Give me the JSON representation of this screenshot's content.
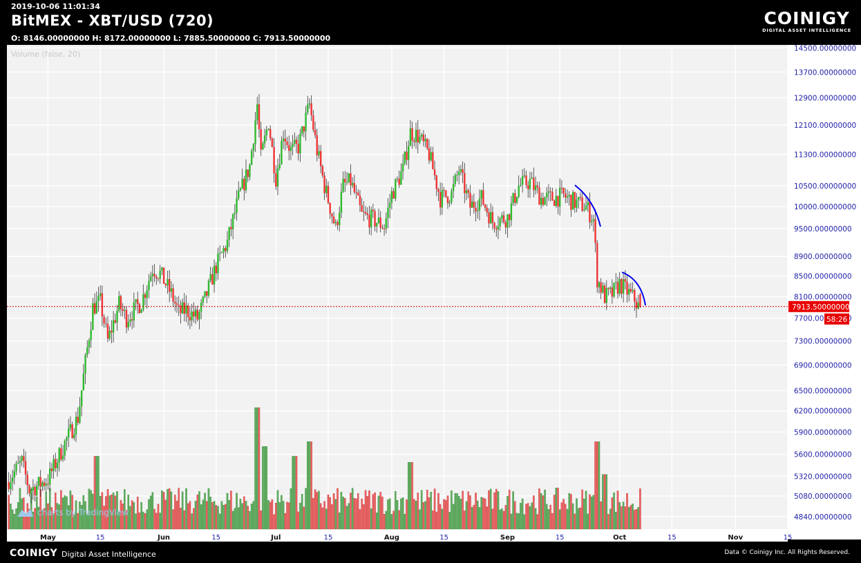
{
  "header": {
    "timestamp": "2019-10-06 11:01:34",
    "title": "BitMEX - XBT/USD (720)",
    "ohlc": "O: 8146.00000000 H: 8172.00000000 L: 7885.50000000 C: 7913.50000000"
  },
  "brand": {
    "name": "COINIGY",
    "tagline": "DIGITAL ASSET INTELLIGENCE"
  },
  "chart_data": {
    "type": "candlestick",
    "interval": "720",
    "indicator_label": "Volume (false, 20)",
    "watermark": "charts by TradingView",
    "x_labels": [
      "May",
      "15",
      "Jun",
      "15",
      "Jul",
      "15",
      "Aug",
      "15",
      "Sep",
      "15",
      "Oct",
      "15",
      "Nov",
      "15"
    ],
    "y_ticks": [
      "14500.00000000",
      "13700.00000000",
      "12900.00000000",
      "12100.00000000",
      "11300.00000000",
      "10500.00000000",
      "10000.00000000",
      "9500.00000000",
      "8900.00000000",
      "8500.00000000",
      "8100.00000000",
      "7700.00000000",
      "7300.00000000",
      "6900.00000000",
      "6500.00000000",
      "6200.00000000",
      "5900.00000000",
      "5600.00000000",
      "5320.00000000",
      "5080.00000000",
      "4840.00000000"
    ],
    "y_scale": "log",
    "y_range": [
      4700,
      14600
    ],
    "x_range": [
      "2019-04-20",
      "2019-11-15"
    ],
    "last_price": "7913.50000000",
    "countdown": "58:26",
    "colors": {
      "up": "#2eb82e",
      "down": "#ee3333",
      "price_line": "#cc0000",
      "arc": "#0000ee",
      "background": "#f2f2f2"
    },
    "anchors": [
      [
        "2019-04-20",
        5250
      ],
      [
        "2019-04-24",
        5500
      ],
      [
        "2019-04-26",
        5150
      ],
      [
        "2019-05-01",
        5280
      ],
      [
        "2019-05-06",
        5800
      ],
      [
        "2019-05-09",
        6100
      ],
      [
        "2019-05-13",
        7900
      ],
      [
        "2019-05-15",
        8000
      ],
      [
        "2019-05-17",
        7300
      ],
      [
        "2019-05-20",
        7950
      ],
      [
        "2019-05-22",
        7700
      ],
      [
        "2019-05-26",
        8000
      ],
      [
        "2019-05-29",
        8650
      ],
      [
        "2019-05-31",
        8550
      ],
      [
        "2019-06-03",
        8150
      ],
      [
        "2019-06-05",
        7800
      ],
      [
        "2019-06-07",
        7850
      ],
      [
        "2019-06-10",
        7700
      ],
      [
        "2019-06-12",
        8050
      ],
      [
        "2019-06-15",
        8700
      ],
      [
        "2019-06-18",
        9200
      ],
      [
        "2019-06-21",
        10200
      ],
      [
        "2019-06-24",
        11000
      ],
      [
        "2019-06-26",
        12700
      ],
      [
        "2019-06-27",
        11200
      ],
      [
        "2019-06-29",
        12200
      ],
      [
        "2019-07-01",
        10700
      ],
      [
        "2019-07-03",
        11900
      ],
      [
        "2019-07-05",
        11400
      ],
      [
        "2019-07-07",
        11500
      ],
      [
        "2019-07-10",
        12700
      ],
      [
        "2019-07-12",
        11400
      ],
      [
        "2019-07-14",
        10500
      ],
      [
        "2019-07-17",
        9500
      ],
      [
        "2019-07-19",
        10500
      ],
      [
        "2019-07-21",
        10600
      ],
      [
        "2019-07-24",
        9800
      ],
      [
        "2019-07-27",
        9700
      ],
      [
        "2019-07-30",
        9550
      ],
      [
        "2019-08-01",
        10300
      ],
      [
        "2019-08-04",
        10900
      ],
      [
        "2019-08-06",
        11900
      ],
      [
        "2019-08-08",
        11800
      ],
      [
        "2019-08-11",
        11300
      ],
      [
        "2019-08-14",
        10200
      ],
      [
        "2019-08-17",
        10300
      ],
      [
        "2019-08-19",
        10900
      ],
      [
        "2019-08-22",
        10000
      ],
      [
        "2019-08-25",
        10200
      ],
      [
        "2019-08-28",
        9650
      ],
      [
        "2019-09-01",
        9750
      ],
      [
        "2019-09-04",
        10500
      ],
      [
        "2019-09-07",
        10600
      ],
      [
        "2019-09-10",
        10200
      ],
      [
        "2019-09-13",
        10200
      ],
      [
        "2019-09-16",
        10250
      ],
      [
        "2019-09-19",
        10100
      ],
      [
        "2019-09-22",
        10000
      ],
      [
        "2019-09-24",
        9700
      ],
      [
        "2019-09-25",
        8450
      ],
      [
        "2019-09-27",
        8100
      ],
      [
        "2019-09-29",
        8150
      ],
      [
        "2019-10-01",
        8350
      ],
      [
        "2019-10-03",
        8200
      ],
      [
        "2019-10-05",
        8050
      ],
      [
        "2019-10-06",
        7913.5
      ]
    ],
    "volume_peaks": [
      [
        "2019-06-26",
        1.0
      ],
      [
        "2019-07-10",
        0.72
      ],
      [
        "2019-09-25",
        0.72
      ],
      [
        "2019-06-28",
        0.68
      ],
      [
        "2019-07-06",
        0.6
      ],
      [
        "2019-08-06",
        0.55
      ],
      [
        "2019-05-14",
        0.6
      ],
      [
        "2019-09-27",
        0.45
      ]
    ]
  },
  "footer": {
    "brand": "COINIGY",
    "tagline": "Digital Asset Intelligence",
    "copyright": "Data © Coinigy Inc.  All Rights Reserved."
  }
}
